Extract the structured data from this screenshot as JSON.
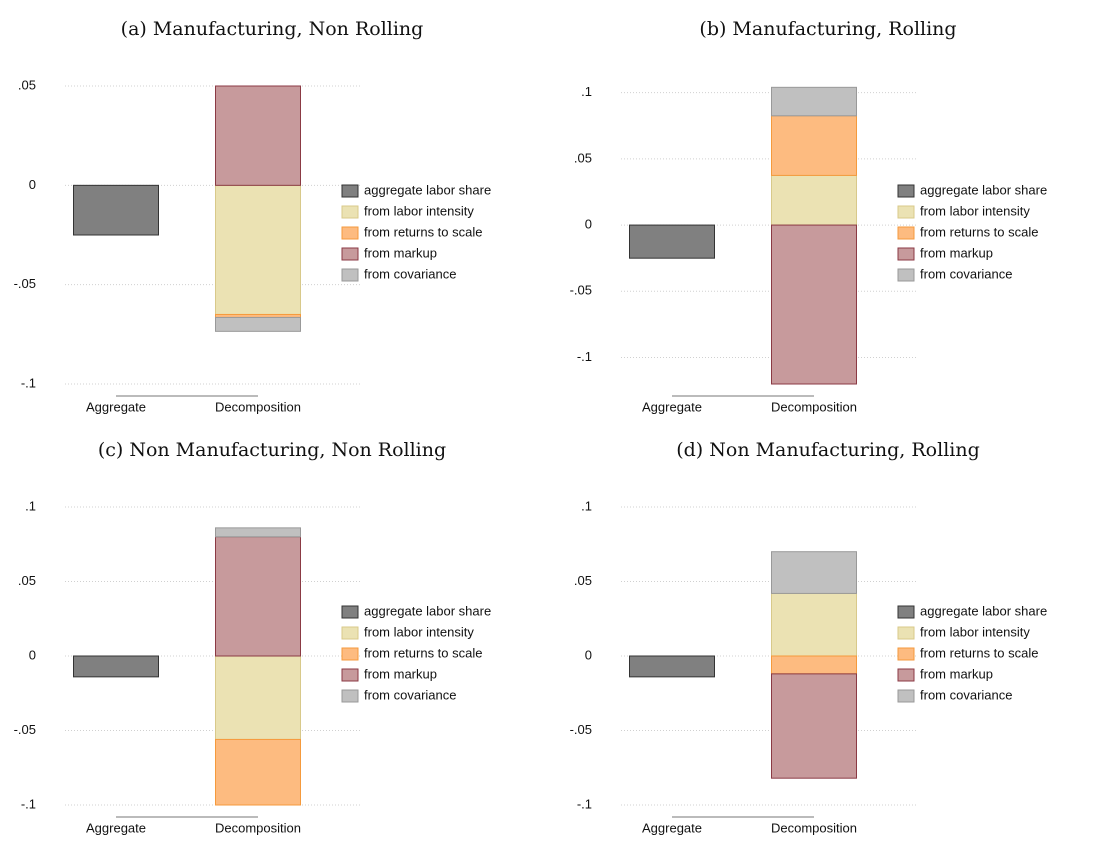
{
  "chart_data": [
    {
      "type": "bar",
      "title": "(a) Manufacturing, Non Rolling",
      "categories": [
        "Aggregate",
        "Decomposition"
      ],
      "series": [
        {
          "name": "aggregate labor share",
          "color": "#808080",
          "edgecolor": "#333333",
          "values": [
            -0.025,
            null
          ]
        },
        {
          "name": "from labor intensity",
          "color": "#ebe2b3",
          "edgecolor": "#d8c98a",
          "values": [
            null,
            -0.065
          ]
        },
        {
          "name": "from returns to scale",
          "color": "#fdbb80",
          "edgecolor": "#f59a3c",
          "values": [
            null,
            -0.0015
          ]
        },
        {
          "name": "from markup",
          "color": "#c79a9c",
          "edgecolor": "#8b3a44",
          "values": [
            null,
            0.05
          ]
        },
        {
          "name": "from covariance",
          "color": "#c0c0c0",
          "edgecolor": "#999999",
          "values": [
            null,
            -0.007
          ]
        }
      ],
      "ylim": [
        -0.1,
        0.05
      ],
      "yticks": [
        {
          "value": -0.1,
          "label": "-.1"
        },
        {
          "value": -0.05,
          "label": "-.05"
        },
        0,
        {
          "value": 0.05,
          "label": ".05"
        }
      ],
      "grid": true
    },
    {
      "type": "bar",
      "title": "(b) Manufacturing, Rolling",
      "categories": [
        "Aggregate",
        "Decomposition"
      ],
      "series": [
        {
          "name": "aggregate labor share",
          "color": "#808080",
          "edgecolor": "#333333",
          "values": [
            -0.025,
            null
          ]
        },
        {
          "name": "from labor intensity",
          "color": "#ebe2b3",
          "edgecolor": "#d8c98a",
          "values": [
            null,
            0.0375
          ]
        },
        {
          "name": "from returns to scale",
          "color": "#fdbb80",
          "edgecolor": "#f59a3c",
          "values": [
            null,
            0.045
          ]
        },
        {
          "name": "from markup",
          "color": "#c79a9c",
          "edgecolor": "#8b3a44",
          "values": [
            null,
            -0.12
          ]
        },
        {
          "name": "from covariance",
          "color": "#c0c0c0",
          "edgecolor": "#999999",
          "values": [
            null,
            0.0215
          ]
        }
      ],
      "ylim": [
        -0.12,
        0.105
      ],
      "yticks": [
        {
          "value": -0.1,
          "label": "-.1"
        },
        {
          "value": -0.05,
          "label": "-.05"
        },
        0,
        {
          "value": 0.05,
          "label": ".05"
        },
        {
          "value": 0.1,
          "label": ".1"
        }
      ],
      "grid": true
    },
    {
      "type": "bar",
      "title": "(c) Non Manufacturing, Non Rolling",
      "categories": [
        "Aggregate",
        "Decomposition"
      ],
      "series": [
        {
          "name": "aggregate labor share",
          "color": "#808080",
          "edgecolor": "#333333",
          "values": [
            -0.014,
            null
          ]
        },
        {
          "name": "from labor intensity",
          "color": "#ebe2b3",
          "edgecolor": "#d8c98a",
          "values": [
            null,
            -0.056
          ]
        },
        {
          "name": "from returns to scale",
          "color": "#fdbb80",
          "edgecolor": "#f59a3c",
          "values": [
            null,
            -0.044
          ]
        },
        {
          "name": "from markup",
          "color": "#c79a9c",
          "edgecolor": "#8b3a44",
          "values": [
            null,
            0.08
          ]
        },
        {
          "name": "from covariance",
          "color": "#c0c0c0",
          "edgecolor": "#999999",
          "values": [
            null,
            0.006
          ]
        }
      ],
      "ylim": [
        -0.1,
        0.1
      ],
      "yticks": [
        {
          "value": -0.1,
          "label": "-.1"
        },
        {
          "value": -0.05,
          "label": "-.05"
        },
        0,
        {
          "value": 0.05,
          "label": ".05"
        },
        {
          "value": 0.1,
          "label": ".1"
        }
      ],
      "grid": true
    },
    {
      "type": "bar",
      "title": "(d) Non Manufacturing, Rolling",
      "categories": [
        "Aggregate",
        "Decomposition"
      ],
      "series": [
        {
          "name": "aggregate labor share",
          "color": "#808080",
          "edgecolor": "#333333",
          "values": [
            -0.014,
            null
          ]
        },
        {
          "name": "from labor intensity",
          "color": "#ebe2b3",
          "edgecolor": "#d8c98a",
          "values": [
            null,
            0.042
          ]
        },
        {
          "name": "from returns to scale",
          "color": "#fdbb80",
          "edgecolor": "#f59a3c",
          "values": [
            null,
            -0.012
          ]
        },
        {
          "name": "from markup",
          "color": "#c79a9c",
          "edgecolor": "#8b3a44",
          "values": [
            null,
            -0.07
          ]
        },
        {
          "name": "from covariance",
          "color": "#c0c0c0",
          "edgecolor": "#999999",
          "values": [
            null,
            0.028
          ]
        }
      ],
      "ylim": [
        -0.1,
        0.1
      ],
      "yticks": [
        {
          "value": -0.1,
          "label": "-.1"
        },
        {
          "value": -0.05,
          "label": "-.05"
        },
        0,
        {
          "value": 0.05,
          "label": ".05"
        },
        {
          "value": 0.1,
          "label": ".1"
        }
      ],
      "grid": true
    }
  ]
}
